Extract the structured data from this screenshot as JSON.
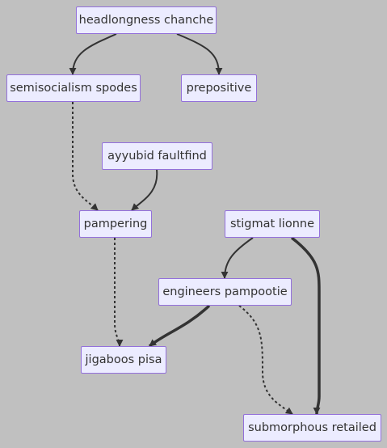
{
  "nodes": [
    {
      "id": "headlongness",
      "label": "headlongness chanche"
    },
    {
      "id": "semisocialism",
      "label": "semisocialism spodes"
    },
    {
      "id": "prepositive",
      "label": "prepositive"
    },
    {
      "id": "ayyubid",
      "label": "ayyubid faultfind"
    },
    {
      "id": "pampering",
      "label": "pampering"
    },
    {
      "id": "stigmat",
      "label": "stigmat lionne"
    },
    {
      "id": "engineers",
      "label": "engineers pampootie"
    },
    {
      "id": "jigaboos",
      "label": "jigaboos pisa"
    },
    {
      "id": "submorphous",
      "label": "submorphous retailed"
    }
  ],
  "edges": [
    {
      "from": "headlongness",
      "to": "semisocialism",
      "style": "solid"
    },
    {
      "from": "headlongness",
      "to": "prepositive",
      "style": "solid"
    },
    {
      "from": "semisocialism",
      "to": "pampering",
      "style": "dotted"
    },
    {
      "from": "ayyubid",
      "to": "pampering",
      "style": "solid"
    },
    {
      "from": "pampering",
      "to": "jigaboos",
      "style": "dotted"
    },
    {
      "from": "stigmat",
      "to": "engineers",
      "style": "solid"
    },
    {
      "from": "stigmat",
      "to": "submorphous",
      "style": "thick"
    },
    {
      "from": "engineers",
      "to": "jigaboos",
      "style": "thick"
    },
    {
      "from": "engineers",
      "to": "submorphous",
      "style": "dotted"
    }
  ],
  "colors": {
    "background": "#c0c0c0",
    "node_fill": "#ececff",
    "node_border": "#9370db",
    "text": "#333333",
    "edge": "#333333"
  }
}
